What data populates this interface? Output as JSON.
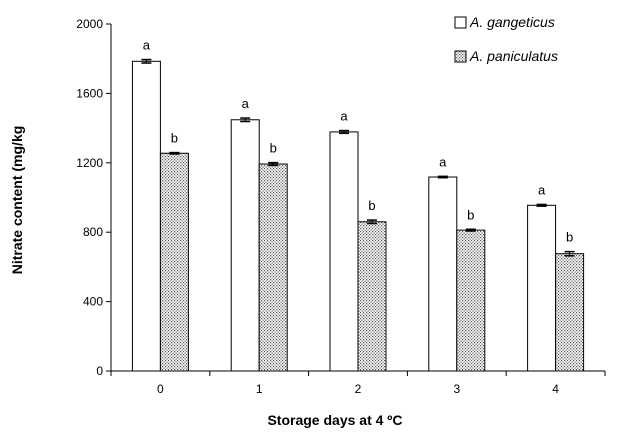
{
  "chart_data": {
    "type": "bar",
    "title": "",
    "xlabel": "Storage days at 4 ºC",
    "ylabel": "Nitrate content (mg/kg",
    "categories": [
      "0",
      "1",
      "2",
      "3",
      "4"
    ],
    "ylim": [
      0,
      2000
    ],
    "yticks": [
      0,
      400,
      800,
      1200,
      1600,
      2000
    ],
    "grid": false,
    "legend_position": "top-right",
    "series": [
      {
        "name": "A. gangeticus",
        "values": [
          1785,
          1448,
          1378,
          1118,
          955
        ],
        "errors": [
          10,
          10,
          8,
          4,
          5
        ],
        "significance": [
          "a",
          "a",
          "a",
          "a",
          "a"
        ],
        "fill": "#ffffff",
        "pattern": "none"
      },
      {
        "name": "A. paniculatus",
        "values": [
          1255,
          1193,
          860,
          812,
          676
        ],
        "errors": [
          4,
          8,
          10,
          5,
          12
        ],
        "significance": [
          "b",
          "b",
          "b",
          "b",
          "b"
        ],
        "fill": "#d9d9d9",
        "pattern": "dotted"
      }
    ]
  }
}
